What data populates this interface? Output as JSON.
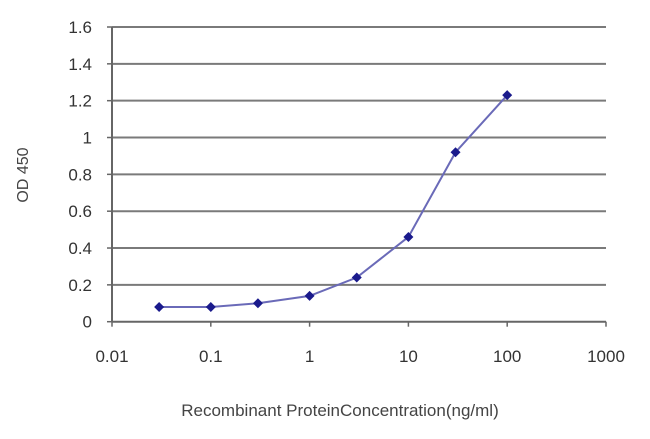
{
  "chart_data": {
    "type": "line",
    "title": "",
    "xlabel": "Recombinant ProteinConcentration(ng/ml)",
    "ylabel": "OD 450",
    "x_scale": "log",
    "xlim": [
      0.01,
      1000
    ],
    "ylim": [
      0,
      1.6
    ],
    "x_ticks": [
      "0.01",
      "0.1",
      "1",
      "10",
      "100",
      "1000"
    ],
    "y_ticks": [
      "0",
      "0.2",
      "0.4",
      "0.6",
      "0.8",
      "1",
      "1.2",
      "1.4",
      "1.6"
    ],
    "grid": "horizontal",
    "series": [
      {
        "x": [
          0.03,
          0.1,
          0.3,
          1,
          3,
          10,
          30,
          100
        ],
        "y": [
          0.08,
          0.08,
          0.1,
          0.14,
          0.24,
          0.46,
          0.92,
          1.23
        ],
        "color": "#1a1a8c",
        "line_color": "#6a6ab8",
        "marker": "diamond"
      }
    ]
  }
}
